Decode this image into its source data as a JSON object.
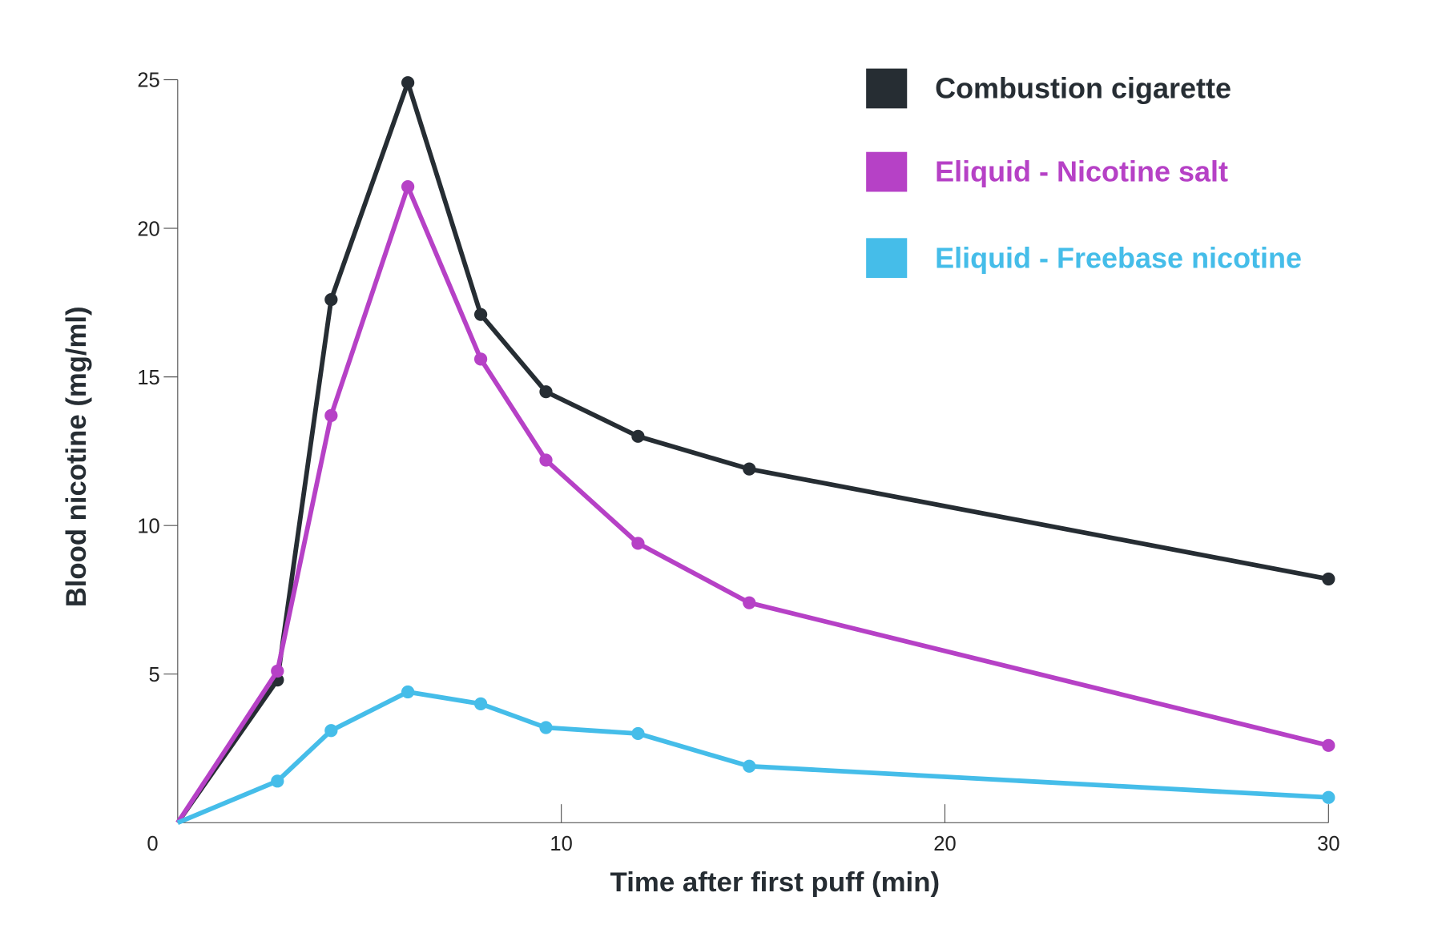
{
  "chart_data": {
    "type": "line",
    "title": "",
    "xlabel": "Time after first puff (min)",
    "ylabel": "Blood nicotine (mg/ml)",
    "xlim": [
      0,
      30
    ],
    "ylim": [
      0,
      25
    ],
    "xticks": [
      "0",
      "10",
      "20",
      "30"
    ],
    "yticks": [
      "5",
      "10",
      "15",
      "20",
      "25"
    ],
    "grid": false,
    "legend_position": "top-right",
    "x": [
      0,
      2.6,
      4,
      6,
      7.9,
      9.6,
      12,
      14.9,
      30
    ],
    "series": [
      {
        "name": "Combustion cigarette",
        "color": "#262d33",
        "values": [
          0,
          4.8,
          17.6,
          24.9,
          17.1,
          14.5,
          13.0,
          11.9,
          8.2
        ]
      },
      {
        "name": "Eliquid - Nicotine salt",
        "color": "#b641c6",
        "values": [
          0,
          5.1,
          13.7,
          21.4,
          15.6,
          12.2,
          9.4,
          7.4,
          2.6
        ]
      },
      {
        "name": "Eliquid - Freebase nicotine",
        "color": "#45bde9",
        "values": [
          0,
          1.4,
          3.1,
          4.4,
          4.0,
          3.2,
          3.0,
          1.9,
          0.85
        ]
      }
    ]
  }
}
